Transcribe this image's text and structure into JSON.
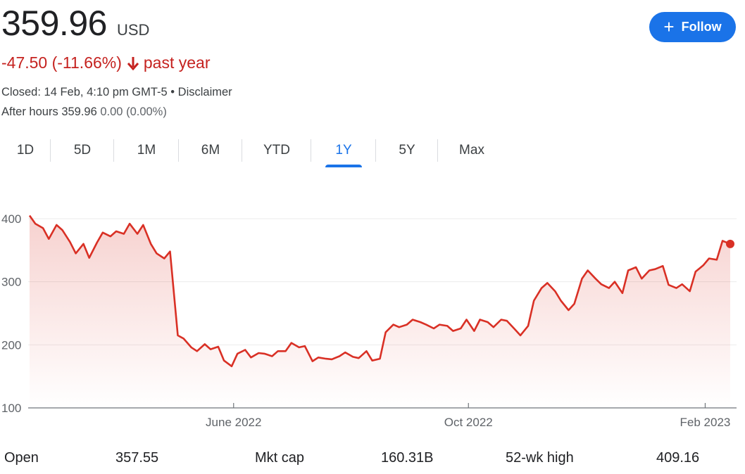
{
  "quote": {
    "price": "359.96",
    "currency": "USD",
    "change": "-47.50 (-11.66%)",
    "change_period": "past year",
    "closed_text": "Closed: 14 Feb, 4:10 pm GMT-5",
    "separator": " • ",
    "disclaimer": "Disclaimer",
    "after_hours_label": "After hours",
    "after_hours_price": "359.96",
    "after_hours_change": "0.00 (0.00%)",
    "down_color": "#c5221f"
  },
  "follow_button": {
    "label": "Follow",
    "icon": "plus-icon",
    "color": "#1a73e8"
  },
  "tabs": [
    {
      "label": "1D",
      "active": false
    },
    {
      "label": "5D",
      "active": false
    },
    {
      "label": "1M",
      "active": false
    },
    {
      "label": "6M",
      "active": false
    },
    {
      "label": "YTD",
      "active": false
    },
    {
      "label": "1Y",
      "active": true
    },
    {
      "label": "5Y",
      "active": false
    },
    {
      "label": "Max",
      "active": false
    }
  ],
  "stats": {
    "open_label": "Open",
    "open_value": "357.55",
    "mktcap_label": "Mkt cap",
    "mktcap_value": "160.31B",
    "high52_label": "52-wk high",
    "high52_value": "409.16"
  },
  "chart_data": {
    "type": "area",
    "line_color": "#d93025",
    "x_start": "2022-02-15",
    "x_end": "2023-02-14",
    "ylim": [
      100,
      410
    ],
    "y_ticks": [
      100,
      200,
      300,
      400
    ],
    "x_ticks": [
      {
        "label": "June 2022",
        "date": "2022-06-01"
      },
      {
        "label": "Oct 2022",
        "date": "2022-10-01"
      },
      {
        "label": "Feb 2023",
        "date": "2023-02-01"
      }
    ],
    "grid": true,
    "series": [
      {
        "x": [
          "2022-02-15",
          "2022-02-18",
          "2022-02-22",
          "2022-02-25",
          "2022-03-01",
          "2022-03-04",
          "2022-03-08",
          "2022-03-11",
          "2022-03-15",
          "2022-03-18",
          "2022-03-22",
          "2022-03-25",
          "2022-03-29",
          "2022-04-01",
          "2022-04-05",
          "2022-04-08",
          "2022-04-12",
          "2022-04-15",
          "2022-04-19",
          "2022-04-22",
          "2022-04-26",
          "2022-04-29",
          "2022-05-03",
          "2022-05-06",
          "2022-05-10",
          "2022-05-13",
          "2022-05-17",
          "2022-05-20",
          "2022-05-24",
          "2022-05-27",
          "2022-05-31",
          "2022-06-03",
          "2022-06-07",
          "2022-06-10",
          "2022-06-14",
          "2022-06-17",
          "2022-06-21",
          "2022-06-24",
          "2022-06-28",
          "2022-07-01",
          "2022-07-05",
          "2022-07-08",
          "2022-07-12",
          "2022-07-15",
          "2022-07-19",
          "2022-07-22",
          "2022-07-26",
          "2022-07-29",
          "2022-08-02",
          "2022-08-05",
          "2022-08-09",
          "2022-08-12",
          "2022-08-16",
          "2022-08-19",
          "2022-08-23",
          "2022-08-26",
          "2022-08-30",
          "2022-09-02",
          "2022-09-06",
          "2022-09-09",
          "2022-09-13",
          "2022-09-16",
          "2022-09-20",
          "2022-09-23",
          "2022-09-27",
          "2022-09-30",
          "2022-10-04",
          "2022-10-07",
          "2022-10-11",
          "2022-10-14",
          "2022-10-18",
          "2022-10-21",
          "2022-10-25",
          "2022-10-28",
          "2022-11-01",
          "2022-11-04",
          "2022-11-08",
          "2022-11-11",
          "2022-11-15",
          "2022-11-18",
          "2022-11-22",
          "2022-11-25",
          "2022-11-29",
          "2022-12-02",
          "2022-12-06",
          "2022-12-09",
          "2022-12-13",
          "2022-12-16",
          "2022-12-20",
          "2022-12-23",
          "2022-12-27",
          "2022-12-30",
          "2023-01-03",
          "2023-01-06",
          "2023-01-10",
          "2023-01-13",
          "2023-01-17",
          "2023-01-20",
          "2023-01-24",
          "2023-01-27",
          "2023-01-31",
          "2023-02-03",
          "2023-02-07",
          "2023-02-10",
          "2023-02-14"
        ],
        "y": [
          405,
          392,
          385,
          368,
          390,
          382,
          363,
          345,
          360,
          338,
          362,
          378,
          372,
          380,
          376,
          392,
          376,
          390,
          360,
          345,
          337,
          348,
          215,
          210,
          196,
          190,
          201,
          193,
          197,
          175,
          166,
          186,
          192,
          180,
          187,
          186,
          182,
          190,
          190,
          203,
          196,
          198,
          174,
          180,
          178,
          177,
          182,
          188,
          181,
          179,
          190,
          175,
          178,
          220,
          232,
          228,
          232,
          240,
          236,
          232,
          226,
          232,
          230,
          222,
          226,
          240,
          222,
          240,
          236,
          228,
          240,
          238,
          225,
          215,
          230,
          270,
          290,
          298,
          285,
          270,
          255,
          265,
          305,
          318,
          305,
          296,
          290,
          300,
          282,
          318,
          323,
          305,
          318,
          320,
          325,
          295,
          290,
          296,
          285,
          316,
          326,
          337,
          335,
          365,
          359.96
        ]
      }
    ]
  }
}
